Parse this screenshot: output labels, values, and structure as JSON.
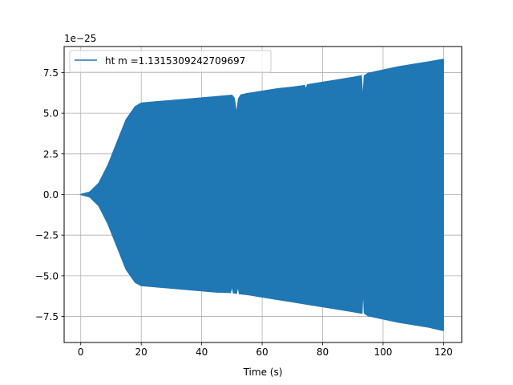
{
  "chart_data": {
    "type": "line",
    "title": "",
    "xlabel": "Time (s)",
    "ylabel": "",
    "y_offset_text": "1e−25",
    "xlim": [
      -5.5,
      126
    ],
    "ylim": [
      -9.1,
      9.1
    ],
    "x_ticks": [
      0,
      20,
      40,
      60,
      80,
      100,
      120
    ],
    "x_tick_labels": [
      "0",
      "20",
      "40",
      "60",
      "80",
      "100",
      "120"
    ],
    "y_ticks": [
      -7.5,
      -5.0,
      -2.5,
      0.0,
      2.5,
      5.0,
      7.5
    ],
    "y_tick_labels": [
      "−7.5",
      "−5.0",
      "−2.5",
      "0.0",
      "2.5",
      "5.0",
      "7.5"
    ],
    "grid": true,
    "legend_position": "top-left",
    "series": [
      {
        "name": "ht m =1.1315309242709697",
        "color": "#1f77b4",
        "envelope_upper": {
          "x": [
            0,
            3,
            6,
            9,
            12,
            15,
            18,
            20,
            25,
            30,
            35,
            40,
            45,
            50,
            50.8,
            51.5,
            52.2,
            53,
            55,
            60,
            65,
            70,
            74,
            74.5,
            75,
            80,
            85,
            90,
            92.8,
            93.3,
            93.8,
            95,
            100,
            105,
            110,
            115,
            119.5,
            120
          ],
          "y": [
            0.0,
            0.15,
            0.7,
            1.8,
            3.2,
            4.6,
            5.4,
            5.62,
            5.7,
            5.78,
            5.86,
            5.94,
            6.02,
            6.1,
            5.9,
            4.9,
            5.9,
            6.12,
            6.2,
            6.35,
            6.5,
            6.6,
            6.7,
            6.45,
            6.75,
            6.9,
            7.05,
            7.2,
            7.3,
            5.7,
            7.3,
            7.45,
            7.65,
            7.85,
            8.0,
            8.15,
            8.3,
            8.3
          ]
        },
        "envelope_lower": {
          "x": [
            0,
            3,
            6,
            9,
            12,
            15,
            18,
            20,
            25,
            30,
            35,
            40,
            45,
            49.5,
            50,
            50.5,
            51.5,
            52,
            52.5,
            55,
            60,
            65,
            70,
            75,
            80,
            85,
            90,
            93,
            93.4,
            93.8,
            95,
            100,
            105,
            110,
            115,
            119.5,
            120
          ],
          "y": [
            0.0,
            -0.15,
            -0.7,
            -1.8,
            -3.2,
            -4.6,
            -5.4,
            -5.6,
            -5.68,
            -5.76,
            -5.84,
            -5.92,
            -6.0,
            -6.02,
            -5.6,
            -6.05,
            -6.07,
            -5.6,
            -6.1,
            -6.15,
            -6.3,
            -6.45,
            -6.6,
            -6.75,
            -6.9,
            -7.05,
            -7.2,
            -7.3,
            -5.5,
            -7.3,
            -7.45,
            -7.65,
            -7.85,
            -8.0,
            -8.15,
            -8.35,
            -8.35
          ]
        }
      }
    ]
  }
}
